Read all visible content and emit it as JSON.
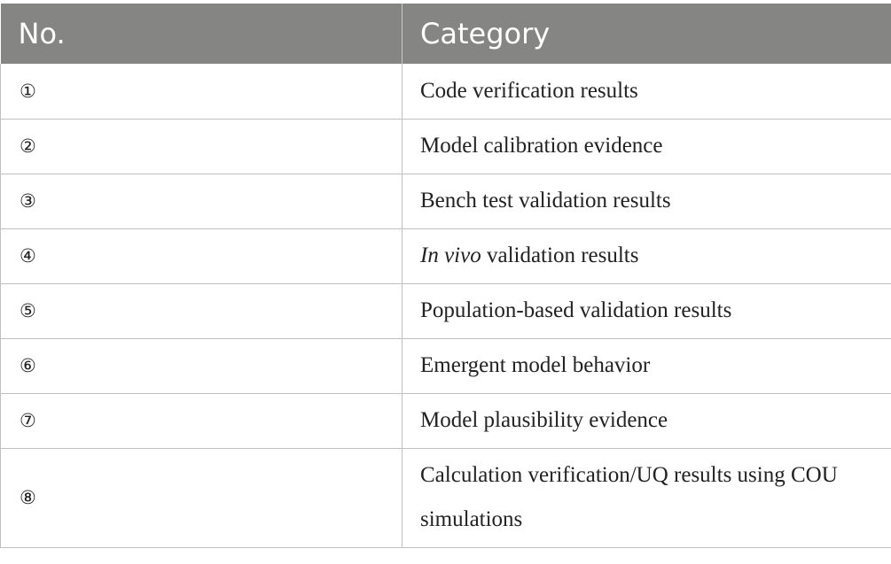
{
  "table": {
    "headers": [
      "No.",
      "Category"
    ],
    "rows": [
      {
        "num": "①",
        "pre": "",
        "italic": "",
        "text": "Code verification results"
      },
      {
        "num": "②",
        "pre": "",
        "italic": "",
        "text": "Model calibration evidence"
      },
      {
        "num": "③",
        "pre": "",
        "italic": "",
        "text": "Bench test validation results"
      },
      {
        "num": "④",
        "pre": "",
        "italic": "In vivo",
        "text": " validation results"
      },
      {
        "num": "⑤",
        "pre": "",
        "italic": "",
        "text": "Population-based validation results"
      },
      {
        "num": "⑥",
        "pre": "",
        "italic": "",
        "text": "Emergent model behavior"
      },
      {
        "num": "⑦",
        "pre": "",
        "italic": "",
        "text": "Model plausibility evidence"
      },
      {
        "num": "⑧",
        "pre": "",
        "italic": "",
        "text": "Calculation verification/UQ results using COU simulations"
      }
    ]
  }
}
